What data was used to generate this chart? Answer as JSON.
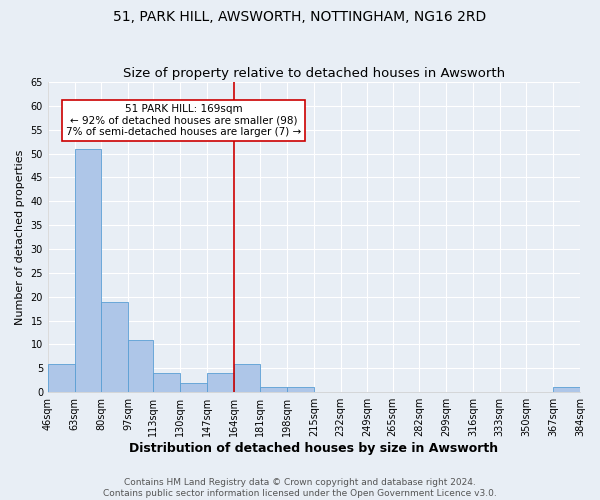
{
  "title": "51, PARK HILL, AWSWORTH, NOTTINGHAM, NG16 2RD",
  "subtitle": "Size of property relative to detached houses in Awsworth",
  "xlabel": "Distribution of detached houses by size in Awsworth",
  "ylabel": "Number of detached properties",
  "footer_line1": "Contains HM Land Registry data © Crown copyright and database right 2024.",
  "footer_line2": "Contains public sector information licensed under the Open Government Licence v3.0.",
  "bins": [
    46,
    63,
    80,
    97,
    113,
    130,
    147,
    164,
    181,
    198,
    215,
    232,
    249,
    265,
    282,
    299,
    316,
    333,
    350,
    367,
    384
  ],
  "bin_labels": [
    "46sqm",
    "63sqm",
    "80sqm",
    "97sqm",
    "113sqm",
    "130sqm",
    "147sqm",
    "164sqm",
    "181sqm",
    "198sqm",
    "215sqm",
    "232sqm",
    "249sqm",
    "265sqm",
    "282sqm",
    "299sqm",
    "316sqm",
    "333sqm",
    "350sqm",
    "367sqm",
    "384sqm"
  ],
  "counts": [
    6,
    51,
    19,
    11,
    4,
    2,
    4,
    6,
    1,
    1,
    0,
    0,
    0,
    0,
    0,
    0,
    0,
    0,
    0,
    1
  ],
  "bar_color": "#aec6e8",
  "bar_edge_color": "#5a9fd4",
  "vline_color": "#cc0000",
  "annotation_text": "51 PARK HILL: 169sqm\n← 92% of detached houses are smaller (98)\n7% of semi-detached houses are larger (7) →",
  "annotation_box_color": "white",
  "annotation_box_edge_color": "#cc0000",
  "ylim": [
    0,
    65
  ],
  "yticks": [
    0,
    5,
    10,
    15,
    20,
    25,
    30,
    35,
    40,
    45,
    50,
    55,
    60,
    65
  ],
  "bg_color": "#e8eef5",
  "grid_color": "white",
  "title_fontsize": 10,
  "subtitle_fontsize": 9.5,
  "axis_label_fontsize": 8,
  "tick_fontsize": 7,
  "annotation_fontsize": 7.5,
  "footer_fontsize": 6.5
}
